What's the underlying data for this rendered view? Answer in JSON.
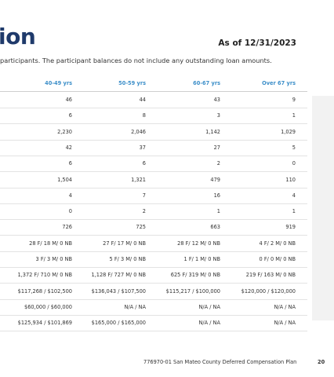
{
  "header": {
    "title": "ion",
    "as_of": "As of 12/31/2023",
    "note": "participants. The participant balances do not include any outstanding loan amounts."
  },
  "table": {
    "headers": [
      "40-49 yrs",
      "50-59 yrs",
      "60-67 yrs",
      "Over 67 yrs"
    ],
    "rows": [
      [
        "46",
        "44",
        "43",
        "9"
      ],
      [
        "6",
        "8",
        "3",
        "1"
      ],
      [
        "2,230",
        "2,046",
        "1,142",
        "1,029"
      ],
      [
        "42",
        "37",
        "27",
        "5"
      ],
      [
        "6",
        "6",
        "2",
        "0"
      ],
      [
        "1,504",
        "1,321",
        "479",
        "110"
      ],
      [
        "4",
        "7",
        "16",
        "4"
      ],
      [
        "0",
        "2",
        "1",
        "1"
      ],
      [
        "726",
        "725",
        "663",
        "919"
      ],
      [
        "28 F/ 18 M/ 0 NB",
        "27 F/ 17 M/ 0 NB",
        "28 F/ 12 M/ 0 NB",
        "4 F/ 2 M/ 0 NB"
      ],
      [
        "3 F/ 3 M/ 0 NB",
        "5 F/ 3 M/ 0 NB",
        "1 F/ 1 M/ 0 NB",
        "0 F/ 0 M/ 0 NB"
      ],
      [
        "1,372 F/ 710 M/ 0 NB",
        "1,128 F/ 727 M/ 0 NB",
        "625 F/ 319 M/ 0 NB",
        "219 F/ 163 M/ 0 NB"
      ],
      [
        "$117,268 / $102,500",
        "$136,043 / $107,500",
        "$115,217 / $100,000",
        "$120,000 / $120,000"
      ],
      [
        "$60,000 / $60,000",
        "N/A / NA",
        "N/A / NA",
        "N/A / NA"
      ],
      [
        "$125,934 / $101,869",
        "$165,000 / $165,000",
        "N/A / NA",
        "N/A / NA"
      ]
    ]
  },
  "footer": {
    "text": "776970-01 San Mateo County Deferred Compensation Plan",
    "page": "20"
  }
}
